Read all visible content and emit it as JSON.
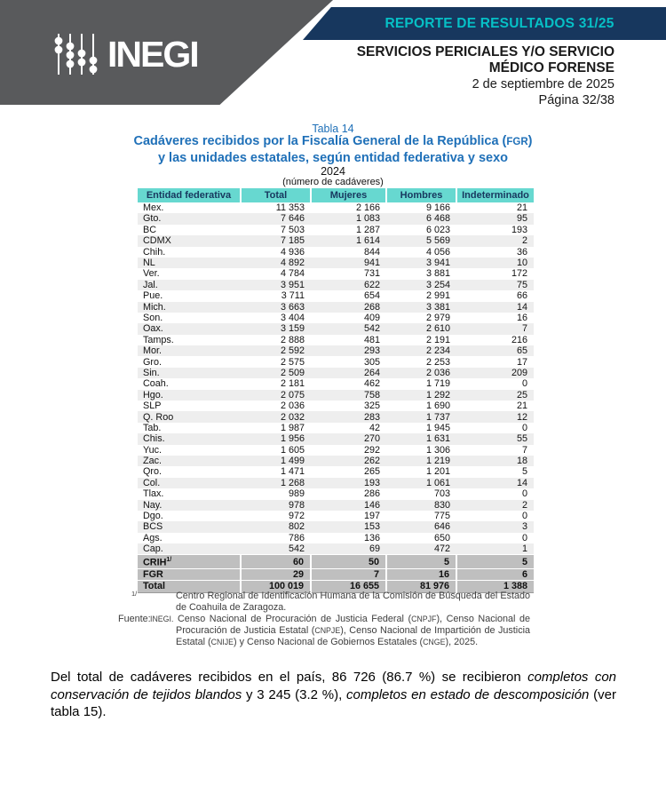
{
  "header": {
    "logo_text": "INEGI",
    "banner": "REPORTE DE RESULTADOS 31/25",
    "title_line1": "SERVICIOS PERICIALES Y/O SERVICIO",
    "title_line2": "MÉDICO FORENSE",
    "date": "2 de septiembre de 2025",
    "page": "Página 32/38"
  },
  "colors": {
    "brand_gray": "#595a5c",
    "brand_navy": "#17375e",
    "banner_teal": "#06c0c6",
    "title_blue": "#1f70b8",
    "table_header_bg": "#67d8d0",
    "row_stripe": "#eeeeee",
    "summary_bg": "#bfbfbf"
  },
  "table": {
    "label": "Tabla 14",
    "title_line1_pre": "Cadáveres recibidos por la Fiscalía General de la República (",
    "title_line1_acronym": "FGR",
    "title_line1_post": ")",
    "title_line2": "y las unidades estatales, según entidad federativa y sexo",
    "year": "2024",
    "unit": "(número de cadáveres)",
    "columns": [
      "Entidad federativa",
      "Total",
      "Mujeres",
      "Hombres",
      "Indeterminado"
    ],
    "rows": [
      [
        "Mex.",
        "11 353",
        "2 166",
        "9 166",
        "21"
      ],
      [
        "Gto.",
        "7 646",
        "1 083",
        "6 468",
        "95"
      ],
      [
        "BC",
        "7 503",
        "1 287",
        "6 023",
        "193"
      ],
      [
        "CDMX",
        "7 185",
        "1 614",
        "5 569",
        "2"
      ],
      [
        "Chih.",
        "4 936",
        "844",
        "4 056",
        "36"
      ],
      [
        "NL",
        "4 892",
        "941",
        "3 941",
        "10"
      ],
      [
        "Ver.",
        "4 784",
        "731",
        "3 881",
        "172"
      ],
      [
        "Jal.",
        "3 951",
        "622",
        "3 254",
        "75"
      ],
      [
        "Pue.",
        "3 711",
        "654",
        "2 991",
        "66"
      ],
      [
        "Mich.",
        "3 663",
        "268",
        "3 381",
        "14"
      ],
      [
        "Son.",
        "3 404",
        "409",
        "2 979",
        "16"
      ],
      [
        "Oax.",
        "3 159",
        "542",
        "2 610",
        "7"
      ],
      [
        "Tamps.",
        "2 888",
        "481",
        "2 191",
        "216"
      ],
      [
        "Mor.",
        "2 592",
        "293",
        "2 234",
        "65"
      ],
      [
        "Gro.",
        "2 575",
        "305",
        "2 253",
        "17"
      ],
      [
        "Sin.",
        "2 509",
        "264",
        "2 036",
        "209"
      ],
      [
        "Coah.",
        "2 181",
        "462",
        "1 719",
        "0"
      ],
      [
        "Hgo.",
        "2 075",
        "758",
        "1 292",
        "25"
      ],
      [
        "SLP",
        "2 036",
        "325",
        "1 690",
        "21"
      ],
      [
        "Q. Roo",
        "2 032",
        "283",
        "1 737",
        "12"
      ],
      [
        "Tab.",
        "1 987",
        "42",
        "1 945",
        "0"
      ],
      [
        "Chis.",
        "1 956",
        "270",
        "1 631",
        "55"
      ],
      [
        "Yuc.",
        "1 605",
        "292",
        "1 306",
        "7"
      ],
      [
        "Zac.",
        "1 499",
        "262",
        "1 219",
        "18"
      ],
      [
        "Qro.",
        "1 471",
        "265",
        "1 201",
        "5"
      ],
      [
        "Col.",
        "1 268",
        "193",
        "1 061",
        "14"
      ],
      [
        "Tlax.",
        "989",
        "286",
        "703",
        "0"
      ],
      [
        "Nay.",
        "978",
        "146",
        "830",
        "2"
      ],
      [
        "Dgo.",
        "972",
        "197",
        "775",
        "0"
      ],
      [
        "BCS",
        "802",
        "153",
        "646",
        "3"
      ],
      [
        "Ags.",
        "786",
        "136",
        "650",
        "0"
      ],
      [
        "Cap.",
        "542",
        "69",
        "472",
        "1"
      ]
    ],
    "summary_rows": [
      {
        "label": "CRIH",
        "sup": "1/",
        "values": [
          "60",
          "50",
          "5",
          "5"
        ],
        "total": false
      },
      {
        "label": "FGR",
        "sup": "",
        "values": [
          "29",
          "7",
          "16",
          "6"
        ],
        "total": false
      },
      {
        "label": "Total",
        "sup": "",
        "values": [
          "100 019",
          "16 655",
          "81 976",
          "1 388"
        ],
        "total": true
      }
    ]
  },
  "footnotes": {
    "note_marker": "1/",
    "note_text": "Centro Regional de Identificación Humana de la Comisión de Búsqueda del Estado de Coahuila de Zaragoza.",
    "fuente_label": "Fuente:",
    "fuente_segments": [
      {
        "t": "INEGI.",
        "sc": true
      },
      {
        "t": " Censo Nacional de Procuración de Justicia Federal (",
        "sc": false
      },
      {
        "t": "CNPJF",
        "sc": true
      },
      {
        "t": "), Censo Nacional de Procuración de Justicia Estatal (",
        "sc": false
      },
      {
        "t": "CNPJE",
        "sc": true
      },
      {
        "t": "), Censo Nacional de Impartición de Justicia Estatal (",
        "sc": false
      },
      {
        "t": "CNIJE",
        "sc": true
      },
      {
        "t": ") y Censo Nacional de Gobiernos Estatales (",
        "sc": false
      },
      {
        "t": "CNGE",
        "sc": true
      },
      {
        "t": "), 2025.",
        "sc": false
      }
    ]
  },
  "paragraph_segments": [
    {
      "t": "Del total de cadáveres recibidos en el país, 86 726 (86.7 %) se recibieron ",
      "i": false
    },
    {
      "t": "completos con conservación de tejidos blandos",
      "i": true
    },
    {
      "t": " y 3 245 (3.2 %), ",
      "i": false
    },
    {
      "t": "completos en estado de descomposición",
      "i": true
    },
    {
      "t": " (ver tabla 15).",
      "i": false
    }
  ]
}
